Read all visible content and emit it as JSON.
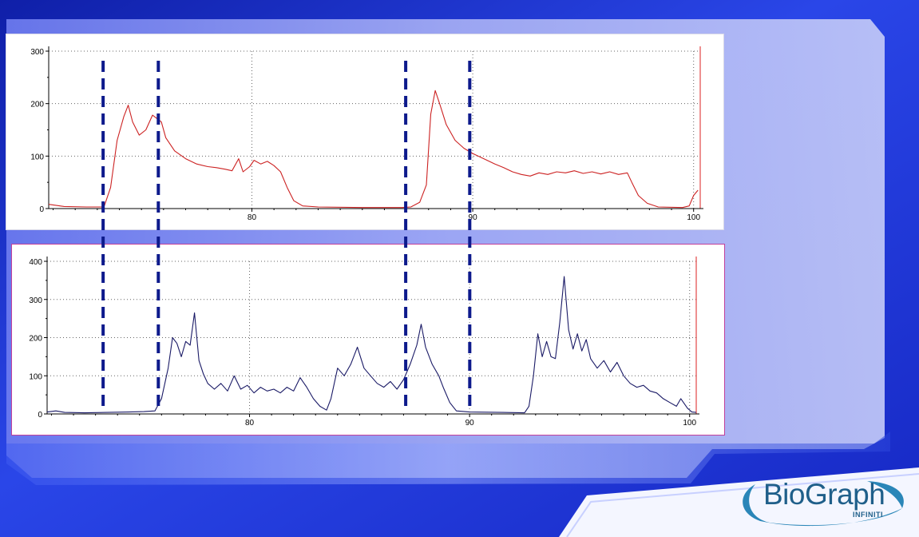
{
  "chart_data": [
    {
      "type": "line",
      "series": [
        {
          "color": "#cc2222"
        }
      ],
      "xlim": [
        70.8,
        100.3
      ],
      "ylim": [
        0,
        300
      ],
      "x_ticks": [
        80,
        90,
        100
      ],
      "y_ticks": [
        0,
        100,
        200,
        300
      ],
      "grid": true,
      "points": [
        [
          70.8,
          8
        ],
        [
          71.5,
          4
        ],
        [
          72.5,
          3
        ],
        [
          73.3,
          3
        ],
        [
          73.6,
          40
        ],
        [
          73.9,
          130
        ],
        [
          74.2,
          175
        ],
        [
          74.4,
          197
        ],
        [
          74.6,
          165
        ],
        [
          74.9,
          140
        ],
        [
          75.2,
          150
        ],
        [
          75.5,
          178
        ],
        [
          75.9,
          165
        ],
        [
          76.1,
          135
        ],
        [
          76.5,
          110
        ],
        [
          77.0,
          95
        ],
        [
          77.5,
          85
        ],
        [
          78.0,
          80
        ],
        [
          78.4,
          78
        ],
        [
          78.8,
          75
        ],
        [
          79.1,
          72
        ],
        [
          79.4,
          95
        ],
        [
          79.6,
          70
        ],
        [
          79.9,
          80
        ],
        [
          80.1,
          92
        ],
        [
          80.4,
          85
        ],
        [
          80.7,
          90
        ],
        [
          81.0,
          82
        ],
        [
          81.3,
          70
        ],
        [
          81.6,
          40
        ],
        [
          81.9,
          15
        ],
        [
          82.3,
          5
        ],
        [
          83.0,
          3
        ],
        [
          85.0,
          2
        ],
        [
          86.8,
          2
        ],
        [
          87.2,
          3
        ],
        [
          87.6,
          12
        ],
        [
          87.9,
          45
        ],
        [
          88.1,
          180
        ],
        [
          88.3,
          225
        ],
        [
          88.5,
          200
        ],
        [
          88.8,
          160
        ],
        [
          89.2,
          130
        ],
        [
          89.6,
          115
        ],
        [
          90.0,
          105
        ],
        [
          90.5,
          95
        ],
        [
          91.0,
          85
        ],
        [
          91.4,
          78
        ],
        [
          91.8,
          70
        ],
        [
          92.2,
          65
        ],
        [
          92.6,
          62
        ],
        [
          93.0,
          68
        ],
        [
          93.4,
          65
        ],
        [
          93.8,
          70
        ],
        [
          94.2,
          68
        ],
        [
          94.6,
          72
        ],
        [
          95.0,
          67
        ],
        [
          95.4,
          70
        ],
        [
          95.8,
          66
        ],
        [
          96.2,
          70
        ],
        [
          96.6,
          65
        ],
        [
          97.0,
          68
        ],
        [
          97.2,
          50
        ],
        [
          97.5,
          25
        ],
        [
          97.9,
          10
        ],
        [
          98.4,
          3
        ],
        [
          99.5,
          2
        ],
        [
          99.8,
          5
        ],
        [
          100.0,
          25
        ],
        [
          100.2,
          35
        ]
      ]
    },
    {
      "type": "line",
      "series": [
        {
          "color": "#1a1a66"
        }
      ],
      "xlim": [
        70.8,
        100.3
      ],
      "ylim": [
        0,
        400
      ],
      "x_ticks": [
        80,
        90,
        100
      ],
      "y_ticks": [
        0,
        100,
        200,
        300,
        400
      ],
      "grid": true,
      "points": [
        [
          70.8,
          5
        ],
        [
          71.2,
          8
        ],
        [
          71.6,
          4
        ],
        [
          72.5,
          3
        ],
        [
          73.5,
          4
        ],
        [
          74.5,
          5
        ],
        [
          75.2,
          6
        ],
        [
          75.7,
          8
        ],
        [
          76.0,
          40
        ],
        [
          76.3,
          120
        ],
        [
          76.5,
          200
        ],
        [
          76.7,
          185
        ],
        [
          76.9,
          150
        ],
        [
          77.1,
          190
        ],
        [
          77.3,
          180
        ],
        [
          77.5,
          265
        ],
        [
          77.7,
          140
        ],
        [
          77.9,
          105
        ],
        [
          78.1,
          80
        ],
        [
          78.4,
          65
        ],
        [
          78.7,
          80
        ],
        [
          79.0,
          60
        ],
        [
          79.3,
          100
        ],
        [
          79.6,
          65
        ],
        [
          79.9,
          75
        ],
        [
          80.2,
          55
        ],
        [
          80.5,
          70
        ],
        [
          80.8,
          60
        ],
        [
          81.1,
          65
        ],
        [
          81.4,
          55
        ],
        [
          81.7,
          70
        ],
        [
          82.0,
          60
        ],
        [
          82.3,
          95
        ],
        [
          82.6,
          70
        ],
        [
          82.9,
          40
        ],
        [
          83.2,
          20
        ],
        [
          83.5,
          10
        ],
        [
          83.7,
          40
        ],
        [
          84.0,
          120
        ],
        [
          84.3,
          100
        ],
        [
          84.6,
          130
        ],
        [
          84.9,
          175
        ],
        [
          85.2,
          120
        ],
        [
          85.5,
          100
        ],
        [
          85.8,
          80
        ],
        [
          86.1,
          70
        ],
        [
          86.4,
          85
        ],
        [
          86.7,
          65
        ],
        [
          87.0,
          90
        ],
        [
          87.3,
          130
        ],
        [
          87.6,
          180
        ],
        [
          87.8,
          235
        ],
        [
          88.0,
          175
        ],
        [
          88.3,
          130
        ],
        [
          88.6,
          100
        ],
        [
          88.8,
          70
        ],
        [
          89.1,
          30
        ],
        [
          89.4,
          8
        ],
        [
          90.0,
          5
        ],
        [
          91.5,
          4
        ],
        [
          92.5,
          3
        ],
        [
          92.7,
          20
        ],
        [
          92.9,
          100
        ],
        [
          93.1,
          210
        ],
        [
          93.3,
          150
        ],
        [
          93.5,
          190
        ],
        [
          93.7,
          150
        ],
        [
          93.9,
          145
        ],
        [
          94.1,
          240
        ],
        [
          94.3,
          360
        ],
        [
          94.5,
          220
        ],
        [
          94.7,
          170
        ],
        [
          94.9,
          210
        ],
        [
          95.1,
          165
        ],
        [
          95.3,
          195
        ],
        [
          95.5,
          145
        ],
        [
          95.8,
          120
        ],
        [
          96.1,
          140
        ],
        [
          96.4,
          110
        ],
        [
          96.7,
          135
        ],
        [
          97.0,
          100
        ],
        [
          97.3,
          80
        ],
        [
          97.6,
          70
        ],
        [
          97.9,
          75
        ],
        [
          98.2,
          60
        ],
        [
          98.5,
          55
        ],
        [
          98.8,
          40
        ],
        [
          99.1,
          30
        ],
        [
          99.4,
          20
        ],
        [
          99.6,
          40
        ],
        [
          99.9,
          15
        ],
        [
          100.1,
          5
        ],
        [
          100.3,
          4
        ]
      ]
    }
  ],
  "markers": {
    "color": "#0d1a8c",
    "x_values": [
      73.3,
      75.8,
      87.0,
      89.9
    ]
  },
  "logo": {
    "main": "BioGraph",
    "sub": "INFINITI"
  }
}
